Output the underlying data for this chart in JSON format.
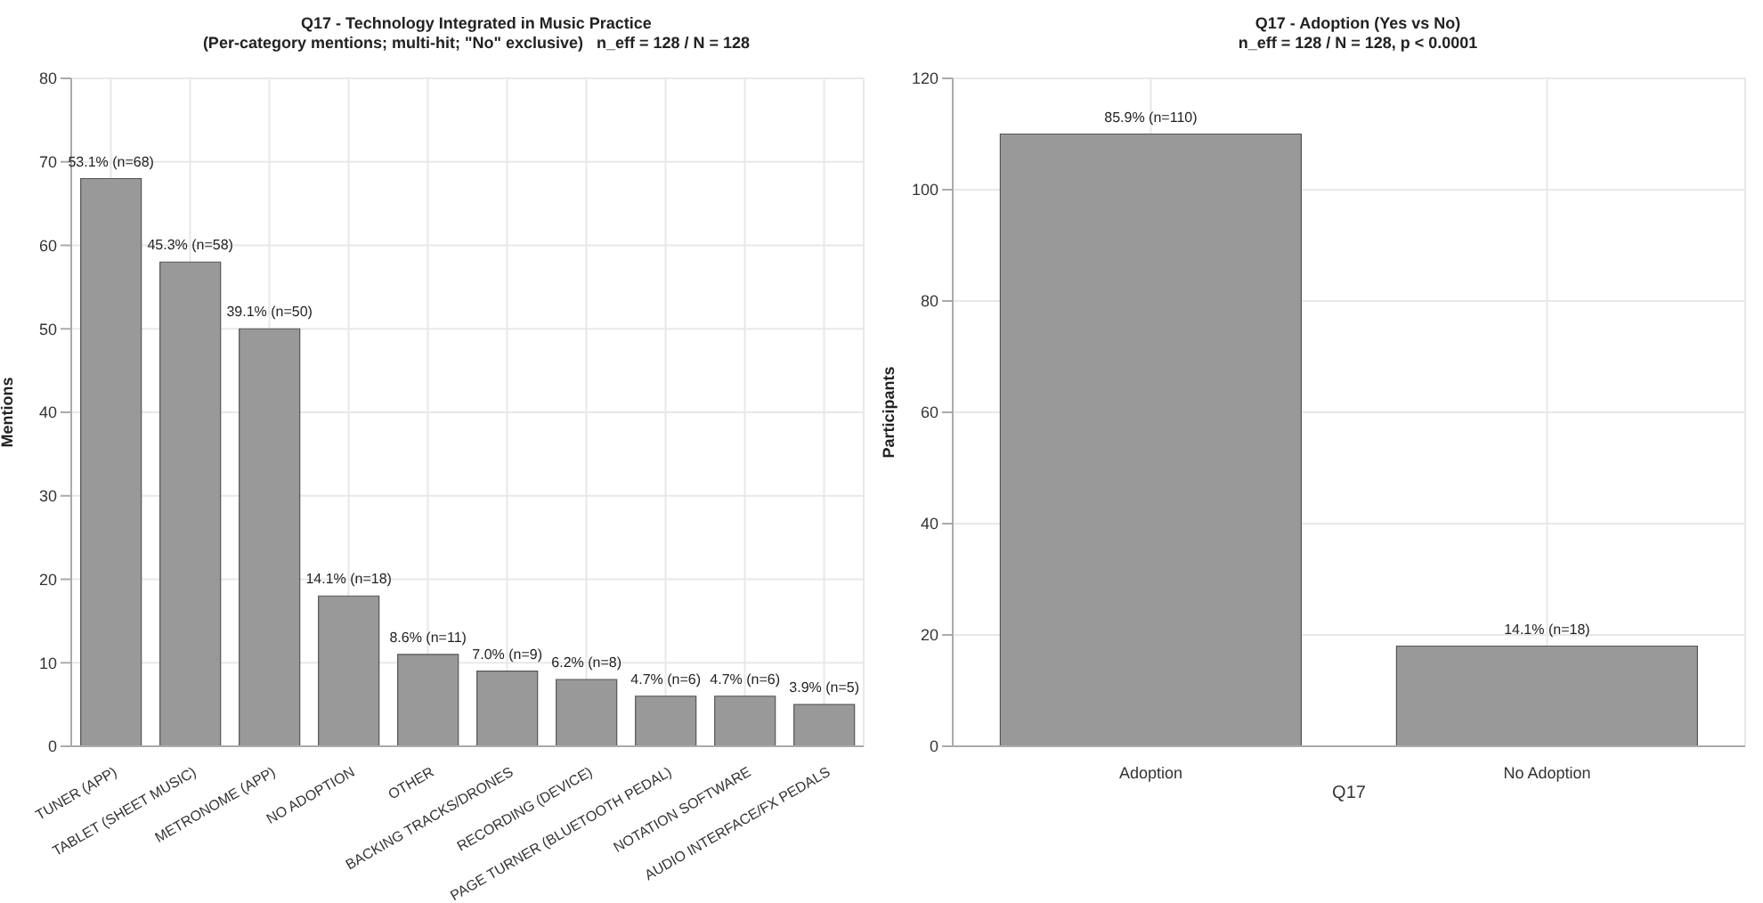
{
  "chart_data": [
    {
      "type": "bar",
      "title": "Q17 - Technology Integrated in Music Practice",
      "subtitle": "(Per-category mentions; multi-hit; \"No\" exclusive)   n_eff = 128 / N = 128",
      "ylabel": "Mentions",
      "categories": [
        "TUNER (APP)",
        "TABLET (SHEET MUSIC)",
        "METRONOME (APP)",
        "NO ADOPTION",
        "OTHER",
        "BACKING TRACKS/DRONES",
        "RECORDING (DEVICE)",
        "PAGE TURNER (BLUETOOTH PEDAL)",
        "NOTATION SOFTWARE",
        "AUDIO INTERFACE/FX PEDALS"
      ],
      "values": [
        68,
        58,
        50,
        18,
        11,
        9,
        8,
        6,
        6,
        5
      ],
      "value_labels": [
        "53.1% (n=68)",
        "45.3% (n=58)",
        "39.1% (n=50)",
        "14.1% (n=18)",
        "8.6% (n=11)",
        "7.0% (n=9)",
        "6.2% (n=8)",
        "4.7% (n=6)",
        "4.7% (n=6)",
        "3.9% (n=5)"
      ],
      "color": "#999999",
      "ylim": [
        0,
        80
      ],
      "yticks": [
        0,
        10,
        20,
        30,
        40,
        50,
        60,
        70,
        80
      ],
      "grid": true
    },
    {
      "type": "bar",
      "title": "Q17 - Adoption (Yes vs No)",
      "subtitle": "n_eff = 128 / N = 128, p < 0.0001",
      "xlabel": "Q17",
      "ylabel": "Participants",
      "categories": [
        "Adoption",
        "No Adoption"
      ],
      "values": [
        110,
        18
      ],
      "value_labels": [
        "85.9% (n=110)",
        "14.1% (n=18)"
      ],
      "color": "#999999",
      "ylim": [
        0,
        120
      ],
      "yticks": [
        0,
        20,
        40,
        60,
        80,
        100,
        120
      ],
      "grid": true
    }
  ]
}
